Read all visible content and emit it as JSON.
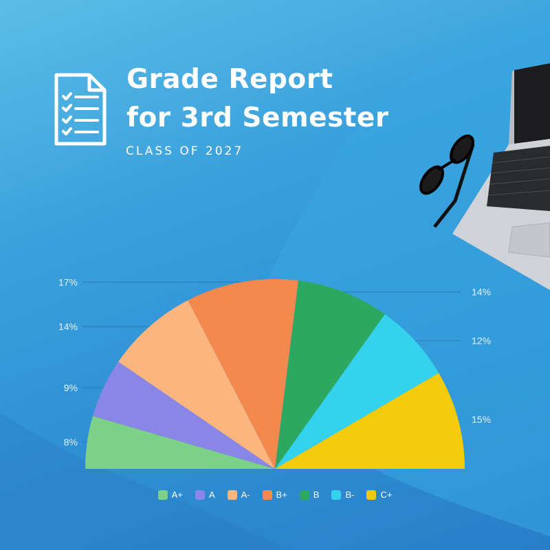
{
  "header": {
    "title_line1": "Grade Report",
    "title_line2": "for 3rd Semester",
    "subtitle": "CLASS OF 2027"
  },
  "icons": {
    "document": "checklist-document-icon",
    "glasses": "eyeglasses",
    "laptop": "laptop"
  },
  "colors": {
    "background_top": "#5bbde6",
    "background_bottom": "#2a7fc8",
    "text": "#ffffff",
    "axis_label": "#e6f2fb"
  },
  "chart_data": {
    "type": "pie",
    "subtype": "semicircle",
    "categories": [
      "A+",
      "A",
      "A-",
      "B+",
      "B",
      "B-",
      "C+"
    ],
    "values": [
      8,
      9,
      14,
      17,
      14,
      12,
      15
    ],
    "value_labels": [
      "8%",
      "9%",
      "14%",
      "17%",
      "14%",
      "12%",
      "15%"
    ],
    "colors": [
      "#7dd087",
      "#8a86e6",
      "#fbb67f",
      "#f3894f",
      "#2ca860",
      "#35d2ee",
      "#f2cb0c"
    ],
    "legend": "bottom",
    "leader_lines": true
  }
}
